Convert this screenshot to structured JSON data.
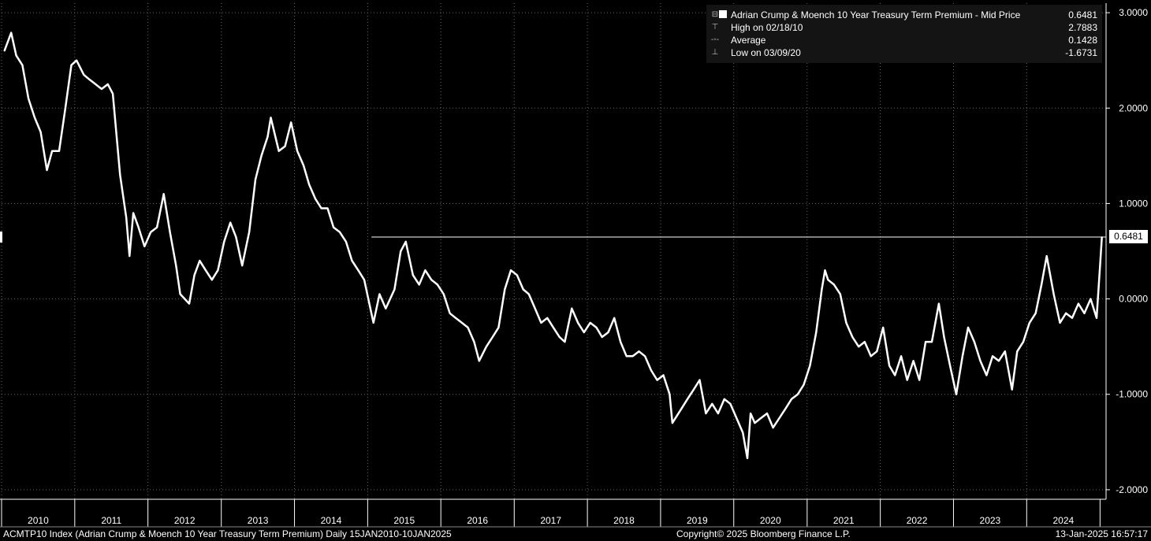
{
  "chart_data": {
    "type": "line",
    "title": "Adrian Crump & Moench 10 Year Treasury Term Premium - Mid Price",
    "series": [
      {
        "name": "Adrian Crump & Moench 10 Year Treasury Term Premium - Mid Price",
        "color": "#ffffff",
        "points": [
          [
            "2010-01-15",
            2.6
          ],
          [
            "2010-02-18",
            2.79
          ],
          [
            "2010-03-15",
            2.55
          ],
          [
            "2010-04-15",
            2.45
          ],
          [
            "2010-05-15",
            2.1
          ],
          [
            "2010-06-15",
            1.9
          ],
          [
            "2010-07-15",
            1.75
          ],
          [
            "2010-08-15",
            1.35
          ],
          [
            "2010-09-10",
            1.55
          ],
          [
            "2010-10-15",
            1.55
          ],
          [
            "2010-11-15",
            2.0
          ],
          [
            "2010-12-15",
            2.45
          ],
          [
            "2011-01-10",
            2.5
          ],
          [
            "2011-02-15",
            2.35
          ],
          [
            "2011-03-15",
            2.3
          ],
          [
            "2011-04-15",
            2.25
          ],
          [
            "2011-05-15",
            2.2
          ],
          [
            "2011-06-15",
            2.25
          ],
          [
            "2011-07-10",
            2.15
          ],
          [
            "2011-08-15",
            1.3
          ],
          [
            "2011-09-15",
            0.85
          ],
          [
            "2011-10-01",
            0.45
          ],
          [
            "2011-10-20",
            0.9
          ],
          [
            "2011-11-15",
            0.75
          ],
          [
            "2011-12-15",
            0.55
          ],
          [
            "2012-01-15",
            0.7
          ],
          [
            "2012-02-15",
            0.75
          ],
          [
            "2012-03-20",
            1.1
          ],
          [
            "2012-04-20",
            0.7
          ],
          [
            "2012-05-20",
            0.35
          ],
          [
            "2012-06-10",
            0.05
          ],
          [
            "2012-07-25",
            -0.05
          ],
          [
            "2012-08-20",
            0.25
          ],
          [
            "2012-09-15",
            0.4
          ],
          [
            "2012-10-15",
            0.3
          ],
          [
            "2012-11-15",
            0.2
          ],
          [
            "2012-12-15",
            0.3
          ],
          [
            "2013-01-15",
            0.6
          ],
          [
            "2013-02-15",
            0.8
          ],
          [
            "2013-03-15",
            0.65
          ],
          [
            "2013-04-15",
            0.35
          ],
          [
            "2013-05-20",
            0.7
          ],
          [
            "2013-06-20",
            1.25
          ],
          [
            "2013-07-20",
            1.5
          ],
          [
            "2013-08-20",
            1.7
          ],
          [
            "2013-09-05",
            1.9
          ],
          [
            "2013-10-15",
            1.55
          ],
          [
            "2013-11-15",
            1.6
          ],
          [
            "2013-12-15",
            1.85
          ],
          [
            "2014-01-15",
            1.55
          ],
          [
            "2014-02-15",
            1.4
          ],
          [
            "2014-03-15",
            1.2
          ],
          [
            "2014-04-15",
            1.05
          ],
          [
            "2014-05-15",
            0.95
          ],
          [
            "2014-06-15",
            0.95
          ],
          [
            "2014-07-15",
            0.75
          ],
          [
            "2014-08-15",
            0.7
          ],
          [
            "2014-09-15",
            0.6
          ],
          [
            "2014-10-15",
            0.4
          ],
          [
            "2014-11-15",
            0.3
          ],
          [
            "2014-12-15",
            0.2
          ],
          [
            "2015-01-30",
            -0.25
          ],
          [
            "2015-03-01",
            0.05
          ],
          [
            "2015-04-01",
            -0.1
          ],
          [
            "2015-05-15",
            0.1
          ],
          [
            "2015-06-15",
            0.5
          ],
          [
            "2015-07-10",
            0.6
          ],
          [
            "2015-08-15",
            0.25
          ],
          [
            "2015-09-15",
            0.15
          ],
          [
            "2015-10-15",
            0.3
          ],
          [
            "2015-11-15",
            0.2
          ],
          [
            "2015-12-15",
            0.15
          ],
          [
            "2016-01-15",
            0.05
          ],
          [
            "2016-02-15",
            -0.15
          ],
          [
            "2016-03-15",
            -0.2
          ],
          [
            "2016-04-15",
            -0.25
          ],
          [
            "2016-05-15",
            -0.3
          ],
          [
            "2016-06-15",
            -0.45
          ],
          [
            "2016-07-10",
            -0.65
          ],
          [
            "2016-08-15",
            -0.5
          ],
          [
            "2016-09-15",
            -0.4
          ],
          [
            "2016-10-15",
            -0.3
          ],
          [
            "2016-11-15",
            0.1
          ],
          [
            "2016-12-15",
            0.3
          ],
          [
            "2017-01-15",
            0.25
          ],
          [
            "2017-02-15",
            0.1
          ],
          [
            "2017-03-15",
            0.05
          ],
          [
            "2017-04-15",
            -0.1
          ],
          [
            "2017-05-15",
            -0.25
          ],
          [
            "2017-06-15",
            -0.2
          ],
          [
            "2017-07-15",
            -0.3
          ],
          [
            "2017-08-15",
            -0.4
          ],
          [
            "2017-09-10",
            -0.45
          ],
          [
            "2017-10-15",
            -0.1
          ],
          [
            "2017-11-15",
            -0.25
          ],
          [
            "2017-12-15",
            -0.35
          ],
          [
            "2018-01-15",
            -0.25
          ],
          [
            "2018-02-15",
            -0.3
          ],
          [
            "2018-03-15",
            -0.4
          ],
          [
            "2018-04-15",
            -0.35
          ],
          [
            "2018-05-15",
            -0.2
          ],
          [
            "2018-06-15",
            -0.45
          ],
          [
            "2018-07-15",
            -0.6
          ],
          [
            "2018-08-15",
            -0.6
          ],
          [
            "2018-09-15",
            -0.55
          ],
          [
            "2018-10-15",
            -0.6
          ],
          [
            "2018-11-15",
            -0.75
          ],
          [
            "2018-12-15",
            -0.85
          ],
          [
            "2019-01-15",
            -0.8
          ],
          [
            "2019-02-15",
            -1.0
          ],
          [
            "2019-03-01",
            -1.3
          ],
          [
            "2019-04-15",
            -1.15
          ],
          [
            "2019-05-15",
            -1.05
          ],
          [
            "2019-06-15",
            -0.95
          ],
          [
            "2019-07-15",
            -0.85
          ],
          [
            "2019-08-15",
            -1.2
          ],
          [
            "2019-09-15",
            -1.1
          ],
          [
            "2019-10-15",
            -1.2
          ],
          [
            "2019-11-15",
            -1.05
          ],
          [
            "2019-12-15",
            -1.1
          ],
          [
            "2020-01-15",
            -1.25
          ],
          [
            "2020-02-15",
            -1.4
          ],
          [
            "2020-03-09",
            -1.67
          ],
          [
            "2020-03-25",
            -1.2
          ],
          [
            "2020-04-15",
            -1.3
          ],
          [
            "2020-05-15",
            -1.25
          ],
          [
            "2020-06-15",
            -1.2
          ],
          [
            "2020-07-15",
            -1.35
          ],
          [
            "2020-08-15",
            -1.25
          ],
          [
            "2020-09-15",
            -1.15
          ],
          [
            "2020-10-15",
            -1.05
          ],
          [
            "2020-11-15",
            -1.0
          ],
          [
            "2020-12-15",
            -0.9
          ],
          [
            "2021-01-15",
            -0.7
          ],
          [
            "2021-02-15",
            -0.35
          ],
          [
            "2021-03-15",
            0.1
          ],
          [
            "2021-03-31",
            0.3
          ],
          [
            "2021-04-15",
            0.2
          ],
          [
            "2021-05-15",
            0.15
          ],
          [
            "2021-06-15",
            0.05
          ],
          [
            "2021-07-15",
            -0.25
          ],
          [
            "2021-08-15",
            -0.4
          ],
          [
            "2021-09-15",
            -0.5
          ],
          [
            "2021-10-15",
            -0.45
          ],
          [
            "2021-11-15",
            -0.6
          ],
          [
            "2021-12-15",
            -0.55
          ],
          [
            "2022-01-15",
            -0.3
          ],
          [
            "2022-02-15",
            -0.7
          ],
          [
            "2022-03-15",
            -0.8
          ],
          [
            "2022-04-15",
            -0.6
          ],
          [
            "2022-05-15",
            -0.85
          ],
          [
            "2022-06-15",
            -0.65
          ],
          [
            "2022-07-15",
            -0.85
          ],
          [
            "2022-08-15",
            -0.45
          ],
          [
            "2022-09-15",
            -0.45
          ],
          [
            "2022-10-20",
            -0.05
          ],
          [
            "2022-11-15",
            -0.4
          ],
          [
            "2022-12-15",
            -0.7
          ],
          [
            "2023-01-15",
            -1.0
          ],
          [
            "2023-02-15",
            -0.6
          ],
          [
            "2023-03-15",
            -0.3
          ],
          [
            "2023-04-15",
            -0.45
          ],
          [
            "2023-05-15",
            -0.65
          ],
          [
            "2023-06-15",
            -0.8
          ],
          [
            "2023-07-15",
            -0.6
          ],
          [
            "2023-08-15",
            -0.65
          ],
          [
            "2023-09-15",
            -0.55
          ],
          [
            "2023-10-20",
            -0.95
          ],
          [
            "2023-11-15",
            -0.55
          ],
          [
            "2023-12-15",
            -0.45
          ],
          [
            "2024-01-15",
            -0.25
          ],
          [
            "2024-02-15",
            -0.15
          ],
          [
            "2024-03-15",
            0.15
          ],
          [
            "2024-04-10",
            0.45
          ],
          [
            "2024-05-15",
            0.05
          ],
          [
            "2024-06-15",
            -0.25
          ],
          [
            "2024-07-15",
            -0.15
          ],
          [
            "2024-08-15",
            -0.2
          ],
          [
            "2024-09-15",
            -0.05
          ],
          [
            "2024-10-15",
            -0.15
          ],
          [
            "2024-11-15",
            0.0
          ],
          [
            "2024-12-15",
            -0.2
          ],
          [
            "2025-01-01",
            0.35
          ],
          [
            "2025-01-10",
            0.6481
          ]
        ]
      }
    ],
    "xlim": [
      "2010-01-01",
      "2025-01-31"
    ],
    "ylim": [
      -2.1,
      3.1
    ],
    "yticks": [
      3.0,
      2.0,
      1.0,
      0.0,
      -1.0,
      -2.0
    ],
    "ytick_labels": [
      "3.0000",
      "2.0000",
      "1.0000",
      "0.0000",
      "-1.0000",
      "-2.0000"
    ],
    "xtick_labels": [
      "2010",
      "2011",
      "2012",
      "2013",
      "2014",
      "2015",
      "2016",
      "2017",
      "2018",
      "2019",
      "2020",
      "2021",
      "2022",
      "2023",
      "2024"
    ],
    "grid": true,
    "legend_position": "top-right",
    "last_value": 0.6481,
    "last_value_label": "0.6481",
    "reference_line_value": 0.6481
  },
  "legend": {
    "series_label": "Adrian Crump & Moench 10 Year Treasury Term Premium - Mid Price",
    "series_value": "0.6481",
    "high_label": "High on 02/18/10",
    "high_value": "2.7883",
    "avg_label": "Average",
    "avg_value": "0.1428",
    "low_label": "Low on 03/09/20",
    "low_value": "-1.6731"
  },
  "footer": {
    "left": "ACMTP10 Index (Adrian Crump & Moench 10 Year Treasury Term Premium)  Daily 15JAN2010-10JAN2025",
    "copyright": "Copyright© 2025 Bloomberg Finance L.P.",
    "timestamp": "13-Jan-2025 16:57:17"
  },
  "colors": {
    "background": "#000000",
    "line": "#ffffff",
    "grid": "#666666",
    "legend_bg": "#141414"
  }
}
